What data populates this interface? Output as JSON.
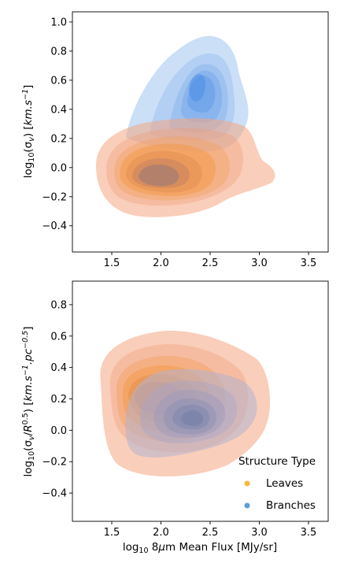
{
  "chart_data": [
    {
      "type": "kde",
      "title": "",
      "xlabel": "",
      "ylabel": "log$_{10}$($\\sigma_v$) [$km.s^{-1}$]",
      "xlim": [
        1.1,
        3.7
      ],
      "ylim": [
        -0.58,
        1.07
      ],
      "xticks": [
        1.5,
        2.0,
        2.5,
        3.0,
        3.5
      ],
      "yticks": [
        -0.4,
        -0.2,
        0.0,
        0.2,
        0.4,
        0.6,
        0.8,
        1.0
      ],
      "xtick_labels": [
        "1.5",
        "2.0",
        "2.5",
        "3.0",
        "3.5"
      ],
      "ytick_labels": [
        "−0.4",
        "−0.2",
        "0.0",
        "0.2",
        "0.4",
        "0.6",
        "0.8",
        "1.0"
      ],
      "series": [
        {
          "name": "Leaves",
          "color": "#f4a582",
          "core_color": "#f5a040",
          "x": [
            1.85,
            1.95,
            2.0,
            2.05,
            2.15,
            2.2,
            2.3,
            1.9,
            2.1,
            2.45
          ],
          "y": [
            -0.05,
            -0.02,
            -0.06,
            0.0,
            -0.08,
            0.02,
            -0.05,
            0.04,
            -0.12,
            -0.02
          ]
        },
        {
          "name": "Branches",
          "color": "#9fc3ef",
          "core_color": "#4c9be8",
          "x": [
            2.3,
            2.35,
            2.4,
            2.45,
            2.5,
            2.4,
            2.3,
            2.55,
            2.2,
            2.45
          ],
          "y": [
            0.55,
            0.6,
            0.5,
            0.45,
            0.4,
            0.3,
            0.4,
            0.35,
            0.2,
            0.62
          ]
        }
      ]
    },
    {
      "type": "kde",
      "title": "",
      "xlabel": "log$_{10}$ 8$\\mu$m Mean Flux [MJy/sr]",
      "ylabel": "log$_{10}$($\\sigma_v$/$R^{0.5}$) [$km.s^{-1}.pc^{-0.5}$]",
      "xlim": [
        1.1,
        3.7
      ],
      "ylim": [
        -0.58,
        0.95
      ],
      "xticks": [
        1.5,
        2.0,
        2.5,
        3.0,
        3.5
      ],
      "yticks": [
        -0.4,
        -0.2,
        0.0,
        0.2,
        0.4,
        0.6,
        0.8
      ],
      "xtick_labels": [
        "1.5",
        "2.0",
        "2.5",
        "3.0",
        "3.5"
      ],
      "ytick_labels": [
        "−0.4",
        "−0.2",
        "0.0",
        "0.2",
        "0.4",
        "0.6",
        "0.8"
      ],
      "series": [
        {
          "name": "Leaves",
          "color": "#f4a582",
          "core_color": "#f5a040",
          "x": [
            1.95,
            2.0,
            2.05,
            2.1,
            2.15,
            2.0,
            1.9,
            2.2,
            2.05,
            2.3
          ],
          "y": [
            0.12,
            0.15,
            0.1,
            0.08,
            0.18,
            0.05,
            0.2,
            0.12,
            0.02,
            0.1
          ]
        },
        {
          "name": "Branches",
          "color": "#9fc3ef",
          "core_color": "#4c9be8",
          "x": [
            2.3,
            2.35,
            2.4,
            2.45,
            2.3,
            2.2,
            2.5,
            2.4,
            2.35,
            2.6
          ],
          "y": [
            0.05,
            0.08,
            0.02,
            0.06,
            0.0,
            0.1,
            0.04,
            -0.02,
            0.12,
            0.05
          ]
        }
      ]
    }
  ],
  "legend": {
    "title": "Structure Type",
    "items": [
      {
        "label": "Leaves",
        "color": "#f6b93b"
      },
      {
        "label": "Branches",
        "color": "#5b9ed6"
      }
    ],
    "position": "lower-right"
  }
}
